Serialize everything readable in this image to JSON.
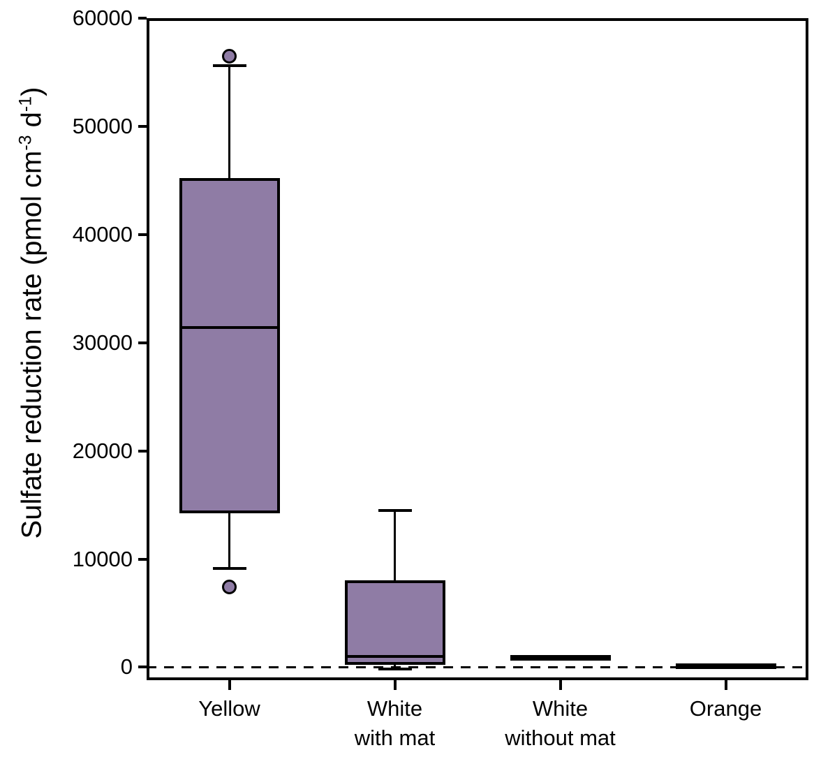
{
  "chart_data": {
    "type": "box",
    "title": "",
    "ylabel": {
      "p1": "Sulfate reduction rate (pmol cm",
      "sup1": "-3",
      "p2": " d",
      "sup2": "-1",
      "p3": ")"
    },
    "ylim": [
      -1200,
      60000
    ],
    "grid": "off",
    "legend": "none",
    "y_ticks": [
      {
        "value": 0,
        "label": "0"
      },
      {
        "value": 10000,
        "label": "10000"
      },
      {
        "value": 20000,
        "label": "20000"
      },
      {
        "value": 30000,
        "label": "30000"
      },
      {
        "value": 40000,
        "label": "40000"
      },
      {
        "value": 50000,
        "label": "50000"
      },
      {
        "value": 60000,
        "label": "60000"
      }
    ],
    "zero_line": {
      "value": 0,
      "style": "dashed"
    },
    "series": [
      {
        "slug": "yellow",
        "label_lines": [
          "Yellow"
        ],
        "whisker_low": 9100,
        "q1": 14200,
        "median": 31400,
        "q3": 45200,
        "whisker_high": 55600,
        "outliers": [
          56500,
          7400
        ]
      },
      {
        "slug": "white-with-mat",
        "label_lines": [
          "White",
          "with mat"
        ],
        "whisker_low": -150,
        "q1": 250,
        "median": 1000,
        "q3": 8000,
        "whisker_high": 14500,
        "outliers": []
      },
      {
        "slug": "white-without-mat",
        "label_lines": [
          "White",
          "without mat"
        ],
        "whisker_low": null,
        "q1": 600,
        "median": 850,
        "q3": 1100,
        "whisker_high": null,
        "outliers": []
      },
      {
        "slug": "orange",
        "label_lines": [
          "Orange"
        ],
        "whisker_low": null,
        "q1": -150,
        "median": 100,
        "q3": 350,
        "whisker_high": null,
        "outliers": []
      }
    ],
    "colors": {
      "box_fill": "#8f7ca5",
      "box_stroke": "#000000",
      "outlier_fill": "#8f7ca5",
      "axis": "#000000",
      "background": "#ffffff"
    }
  }
}
